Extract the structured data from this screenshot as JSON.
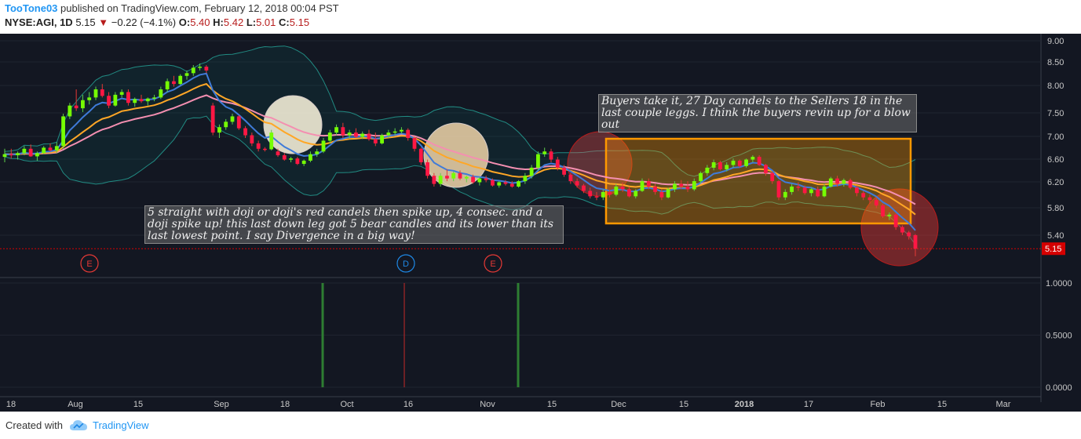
{
  "header": {
    "author": "TooTone03",
    "published": "published on TradingView.com, February 12, 2018 00:04 PST",
    "symbol": "NYSE:AGI, 1D",
    "last": "5.15",
    "change": "−0.22 (−4.1%)",
    "open_label": "O:",
    "open": "5.40",
    "high_label": "H:",
    "high": "5.42",
    "low_label": "L:",
    "low": "5.01",
    "close_label": "C:",
    "close": "5.15"
  },
  "price_axis": [
    "9.00",
    "8.50",
    "8.00",
    "7.50",
    "7.00",
    "6.60",
    "6.20",
    "5.80",
    "5.40"
  ],
  "price_badge": "5.15",
  "indicator_axis": [
    "1.0000",
    "0.5000",
    "0.0000"
  ],
  "time_axis": [
    "18",
    "Aug",
    "15",
    "Sep",
    "18",
    "Oct",
    "16",
    "Nov",
    "15",
    "Dec",
    "15",
    "2018",
    "17",
    "Feb",
    "15",
    "Mar"
  ],
  "event_markers": [
    "E",
    "D",
    "E"
  ],
  "annotations": {
    "left": "5 straight with doji or doji's red candels then spike up, 4 consec. and a doji spike up! this last down leg got 5 bear candles and its lower than its last lowest point. I say Divergence in a big way!",
    "right": "Buyers take it, 27 Day candels to the Sellers 18 in the last couple leggs. I think the buyers revin up for a blow out"
  },
  "footer": {
    "created_with": "Created with",
    "brand": "TradingView"
  },
  "colors": {
    "background": "#131722",
    "bull": "#4caf50",
    "bear": "#d50000",
    "accent": "#2196f3",
    "box": "#ff9800"
  },
  "chart_data": {
    "type": "candlestick",
    "symbol": "NYSE:AGI",
    "interval": "1D",
    "ylim": [
      5.0,
      9.1
    ],
    "indicator_ylim": [
      0,
      1
    ],
    "candles": [
      {
        "o": 6.85,
        "h": 7.0,
        "l": 6.75,
        "c": 6.9
      },
      {
        "o": 6.9,
        "h": 7.0,
        "l": 6.82,
        "c": 6.88
      },
      {
        "o": 6.88,
        "h": 6.95,
        "l": 6.8,
        "c": 6.92
      },
      {
        "o": 6.92,
        "h": 7.05,
        "l": 6.88,
        "c": 7.0
      },
      {
        "o": 7.0,
        "h": 7.08,
        "l": 6.85,
        "c": 6.86
      },
      {
        "o": 6.86,
        "h": 6.95,
        "l": 6.78,
        "c": 6.92
      },
      {
        "o": 6.92,
        "h": 7.05,
        "l": 6.9,
        "c": 7.02
      },
      {
        "o": 7.02,
        "h": 7.1,
        "l": 6.95,
        "c": 6.97
      },
      {
        "o": 6.97,
        "h": 7.12,
        "l": 6.92,
        "c": 7.05
      },
      {
        "o": 7.05,
        "h": 7.65,
        "l": 7.0,
        "c": 7.6
      },
      {
        "o": 7.6,
        "h": 7.85,
        "l": 7.55,
        "c": 7.8
      },
      {
        "o": 7.8,
        "h": 8.1,
        "l": 7.7,
        "c": 7.75
      },
      {
        "o": 7.75,
        "h": 8.0,
        "l": 7.68,
        "c": 7.9
      },
      {
        "o": 7.9,
        "h": 8.05,
        "l": 7.82,
        "c": 7.95
      },
      {
        "o": 7.95,
        "h": 8.15,
        "l": 7.9,
        "c": 8.1
      },
      {
        "o": 8.1,
        "h": 8.2,
        "l": 7.95,
        "c": 7.98
      },
      {
        "o": 7.98,
        "h": 8.05,
        "l": 7.75,
        "c": 7.8
      },
      {
        "o": 7.8,
        "h": 8.05,
        "l": 7.78,
        "c": 8.0
      },
      {
        "o": 8.0,
        "h": 8.1,
        "l": 7.95,
        "c": 8.05
      },
      {
        "o": 8.05,
        "h": 8.1,
        "l": 7.8,
        "c": 7.85
      },
      {
        "o": 7.85,
        "h": 7.95,
        "l": 7.78,
        "c": 7.92
      },
      {
        "o": 7.92,
        "h": 8.0,
        "l": 7.85,
        "c": 7.88
      },
      {
        "o": 7.88,
        "h": 7.95,
        "l": 7.8,
        "c": 7.93
      },
      {
        "o": 7.93,
        "h": 8.0,
        "l": 7.88,
        "c": 7.95
      },
      {
        "o": 7.95,
        "h": 8.15,
        "l": 7.92,
        "c": 8.1
      },
      {
        "o": 8.1,
        "h": 8.3,
        "l": 8.05,
        "c": 8.25
      },
      {
        "o": 8.25,
        "h": 8.35,
        "l": 8.15,
        "c": 8.2
      },
      {
        "o": 8.2,
        "h": 8.38,
        "l": 8.18,
        "c": 8.35
      },
      {
        "o": 8.35,
        "h": 8.45,
        "l": 8.28,
        "c": 8.4
      },
      {
        "o": 8.4,
        "h": 8.55,
        "l": 8.35,
        "c": 8.5
      },
      {
        "o": 8.5,
        "h": 8.58,
        "l": 8.45,
        "c": 8.52
      },
      {
        "o": 8.52,
        "h": 8.55,
        "l": 8.4,
        "c": 8.45
      },
      {
        "o": 7.8,
        "h": 7.85,
        "l": 7.25,
        "c": 7.3
      },
      {
        "o": 7.3,
        "h": 7.45,
        "l": 7.2,
        "c": 7.4
      },
      {
        "o": 7.4,
        "h": 7.55,
        "l": 7.35,
        "c": 7.5
      },
      {
        "o": 7.5,
        "h": 7.65,
        "l": 7.45,
        "c": 7.6
      },
      {
        "o": 7.6,
        "h": 7.62,
        "l": 7.35,
        "c": 7.38
      },
      {
        "o": 7.38,
        "h": 7.42,
        "l": 7.2,
        "c": 7.25
      },
      {
        "o": 7.25,
        "h": 7.3,
        "l": 7.05,
        "c": 7.1
      },
      {
        "o": 7.1,
        "h": 7.15,
        "l": 6.95,
        "c": 7.0
      },
      {
        "o": 7.0,
        "h": 7.03,
        "l": 6.95,
        "c": 6.99
      },
      {
        "o": 6.99,
        "h": 7.35,
        "l": 6.97,
        "c": 7.3
      },
      {
        "o": 6.95,
        "h": 7.0,
        "l": 6.85,
        "c": 6.88
      },
      {
        "o": 6.88,
        "h": 6.92,
        "l": 6.78,
        "c": 6.8
      },
      {
        "o": 6.8,
        "h": 6.85,
        "l": 6.75,
        "c": 6.82
      },
      {
        "o": 6.82,
        "h": 6.85,
        "l": 6.7,
        "c": 6.72
      },
      {
        "o": 6.72,
        "h": 6.8,
        "l": 6.68,
        "c": 6.78
      },
      {
        "o": 6.78,
        "h": 6.95,
        "l": 6.75,
        "c": 6.9
      },
      {
        "o": 6.9,
        "h": 7.0,
        "l": 6.85,
        "c": 6.95
      },
      {
        "o": 6.95,
        "h": 7.2,
        "l": 6.92,
        "c": 7.15
      },
      {
        "o": 7.15,
        "h": 7.35,
        "l": 7.1,
        "c": 7.3
      },
      {
        "o": 7.3,
        "h": 7.45,
        "l": 7.25,
        "c": 7.4
      },
      {
        "o": 7.4,
        "h": 7.48,
        "l": 7.2,
        "c": 7.25
      },
      {
        "o": 7.25,
        "h": 7.35,
        "l": 7.18,
        "c": 7.3
      },
      {
        "o": 7.3,
        "h": 7.38,
        "l": 7.2,
        "c": 7.22
      },
      {
        "o": 7.22,
        "h": 7.32,
        "l": 7.18,
        "c": 7.28
      },
      {
        "o": 7.28,
        "h": 7.35,
        "l": 7.15,
        "c": 7.18
      },
      {
        "o": 7.18,
        "h": 7.3,
        "l": 7.05,
        "c": 7.1
      },
      {
        "o": 7.1,
        "h": 7.28,
        "l": 7.08,
        "c": 7.25
      },
      {
        "o": 7.25,
        "h": 7.35,
        "l": 7.2,
        "c": 7.3
      },
      {
        "o": 7.3,
        "h": 7.38,
        "l": 7.25,
        "c": 7.32
      },
      {
        "o": 7.32,
        "h": 7.4,
        "l": 7.28,
        "c": 7.35
      },
      {
        "o": 7.35,
        "h": 7.38,
        "l": 7.15,
        "c": 7.2
      },
      {
        "o": 7.2,
        "h": 7.22,
        "l": 6.95,
        "c": 7.0
      },
      {
        "o": 7.0,
        "h": 7.02,
        "l": 6.7,
        "c": 6.75
      },
      {
        "o": 6.75,
        "h": 6.8,
        "l": 6.45,
        "c": 6.5
      },
      {
        "o": 6.5,
        "h": 6.55,
        "l": 6.3,
        "c": 6.35
      },
      {
        "o": 6.35,
        "h": 6.55,
        "l": 6.3,
        "c": 6.5
      },
      {
        "o": 6.5,
        "h": 6.62,
        "l": 6.4,
        "c": 6.45
      },
      {
        "o": 6.45,
        "h": 6.58,
        "l": 6.4,
        "c": 6.55
      },
      {
        "o": 6.55,
        "h": 6.6,
        "l": 6.42,
        "c": 6.45
      },
      {
        "o": 6.45,
        "h": 6.5,
        "l": 6.38,
        "c": 6.48
      },
      {
        "o": 6.48,
        "h": 6.52,
        "l": 6.35,
        "c": 6.38
      },
      {
        "o": 6.38,
        "h": 6.48,
        "l": 6.32,
        "c": 6.45
      },
      {
        "o": 6.45,
        "h": 6.5,
        "l": 6.38,
        "c": 6.42
      },
      {
        "o": 6.42,
        "h": 6.45,
        "l": 6.3,
        "c": 6.32
      },
      {
        "o": 6.32,
        "h": 6.4,
        "l": 6.28,
        "c": 6.38
      },
      {
        "o": 6.38,
        "h": 6.42,
        "l": 6.32,
        "c": 6.35
      },
      {
        "o": 6.35,
        "h": 6.4,
        "l": 6.28,
        "c": 6.3
      },
      {
        "o": 6.3,
        "h": 6.42,
        "l": 6.28,
        "c": 6.4
      },
      {
        "o": 6.4,
        "h": 6.55,
        "l": 6.35,
        "c": 6.5
      },
      {
        "o": 6.5,
        "h": 6.7,
        "l": 6.45,
        "c": 6.65
      },
      {
        "o": 6.65,
        "h": 6.95,
        "l": 6.6,
        "c": 6.9
      },
      {
        "o": 6.9,
        "h": 7.02,
        "l": 6.85,
        "c": 6.95
      },
      {
        "o": 6.95,
        "h": 7.0,
        "l": 6.75,
        "c": 6.8
      },
      {
        "o": 6.8,
        "h": 6.85,
        "l": 6.6,
        "c": 6.65
      },
      {
        "o": 6.65,
        "h": 6.7,
        "l": 6.48,
        "c": 6.52
      },
      {
        "o": 6.52,
        "h": 6.55,
        "l": 6.35,
        "c": 6.4
      },
      {
        "o": 6.4,
        "h": 6.45,
        "l": 6.28,
        "c": 6.32
      },
      {
        "o": 6.32,
        "h": 6.35,
        "l": 6.18,
        "c": 6.22
      },
      {
        "o": 6.22,
        "h": 6.28,
        "l": 6.08,
        "c": 6.12
      },
      {
        "o": 6.12,
        "h": 6.2,
        "l": 6.05,
        "c": 6.1
      },
      {
        "o": 6.1,
        "h": 6.25,
        "l": 6.05,
        "c": 6.2
      },
      {
        "o": 6.2,
        "h": 6.25,
        "l": 6.1,
        "c": 6.15
      },
      {
        "o": 6.15,
        "h": 6.35,
        "l": 6.12,
        "c": 6.3
      },
      {
        "o": 6.3,
        "h": 6.38,
        "l": 6.2,
        "c": 6.25
      },
      {
        "o": 6.25,
        "h": 6.3,
        "l": 6.1,
        "c": 6.12
      },
      {
        "o": 6.12,
        "h": 6.25,
        "l": 6.08,
        "c": 6.22
      },
      {
        "o": 6.22,
        "h": 6.45,
        "l": 6.2,
        "c": 6.4
      },
      {
        "o": 6.4,
        "h": 6.45,
        "l": 6.25,
        "c": 6.3
      },
      {
        "o": 6.3,
        "h": 6.35,
        "l": 6.15,
        "c": 6.2
      },
      {
        "o": 6.2,
        "h": 6.25,
        "l": 6.05,
        "c": 6.1
      },
      {
        "o": 6.1,
        "h": 6.28,
        "l": 6.08,
        "c": 6.25
      },
      {
        "o": 6.25,
        "h": 6.4,
        "l": 6.2,
        "c": 6.35
      },
      {
        "o": 6.35,
        "h": 6.42,
        "l": 6.25,
        "c": 6.3
      },
      {
        "o": 6.3,
        "h": 6.4,
        "l": 6.2,
        "c": 6.25
      },
      {
        "o": 6.25,
        "h": 6.45,
        "l": 6.22,
        "c": 6.4
      },
      {
        "o": 6.4,
        "h": 6.58,
        "l": 6.35,
        "c": 6.55
      },
      {
        "o": 6.55,
        "h": 6.7,
        "l": 6.5,
        "c": 6.65
      },
      {
        "o": 6.65,
        "h": 6.8,
        "l": 6.6,
        "c": 6.75
      },
      {
        "o": 6.75,
        "h": 6.78,
        "l": 6.6,
        "c": 6.62
      },
      {
        "o": 6.62,
        "h": 6.75,
        "l": 6.58,
        "c": 6.7
      },
      {
        "o": 6.7,
        "h": 6.82,
        "l": 6.65,
        "c": 6.78
      },
      {
        "o": 6.78,
        "h": 6.8,
        "l": 6.65,
        "c": 6.68
      },
      {
        "o": 6.68,
        "h": 6.82,
        "l": 6.65,
        "c": 6.8
      },
      {
        "o": 6.8,
        "h": 6.88,
        "l": 6.75,
        "c": 6.85
      },
      {
        "o": 6.85,
        "h": 6.88,
        "l": 6.68,
        "c": 6.7
      },
      {
        "o": 6.7,
        "h": 6.72,
        "l": 6.5,
        "c": 6.55
      },
      {
        "o": 6.55,
        "h": 6.58,
        "l": 6.35,
        "c": 6.4
      },
      {
        "o": 6.4,
        "h": 6.42,
        "l": 6.05,
        "c": 6.1
      },
      {
        "o": 6.1,
        "h": 6.25,
        "l": 6.05,
        "c": 6.2
      },
      {
        "o": 6.2,
        "h": 6.35,
        "l": 6.15,
        "c": 6.3
      },
      {
        "o": 6.3,
        "h": 6.38,
        "l": 6.22,
        "c": 6.28
      },
      {
        "o": 6.28,
        "h": 6.32,
        "l": 6.15,
        "c": 6.18
      },
      {
        "o": 6.18,
        "h": 6.28,
        "l": 6.12,
        "c": 6.25
      },
      {
        "o": 6.25,
        "h": 6.3,
        "l": 6.1,
        "c": 6.12
      },
      {
        "o": 6.12,
        "h": 6.35,
        "l": 6.1,
        "c": 6.3
      },
      {
        "o": 6.3,
        "h": 6.48,
        "l": 6.28,
        "c": 6.45
      },
      {
        "o": 6.45,
        "h": 6.5,
        "l": 6.3,
        "c": 6.35
      },
      {
        "o": 6.35,
        "h": 6.45,
        "l": 6.3,
        "c": 6.42
      },
      {
        "o": 6.42,
        "h": 6.45,
        "l": 6.25,
        "c": 6.28
      },
      {
        "o": 6.28,
        "h": 6.32,
        "l": 6.12,
        "c": 6.18
      },
      {
        "o": 6.18,
        "h": 6.22,
        "l": 6.05,
        "c": 6.1
      },
      {
        "o": 6.1,
        "h": 6.15,
        "l": 5.98,
        "c": 6.05
      },
      {
        "o": 6.05,
        "h": 6.1,
        "l": 5.9,
        "c": 5.95
      },
      {
        "o": 5.95,
        "h": 5.98,
        "l": 5.72,
        "c": 5.75
      },
      {
        "o": 5.75,
        "h": 5.82,
        "l": 5.68,
        "c": 5.78
      },
      {
        "o": 5.78,
        "h": 5.8,
        "l": 5.5,
        "c": 5.55
      },
      {
        "o": 5.55,
        "h": 5.58,
        "l": 5.4,
        "c": 5.45
      },
      {
        "o": 5.45,
        "h": 5.48,
        "l": 5.32,
        "c": 5.38
      },
      {
        "o": 5.4,
        "h": 5.42,
        "l": 5.01,
        "c": 5.15
      }
    ],
    "indicator_spikes": [
      {
        "bar": 49,
        "value": 1.0,
        "color": "green"
      },
      {
        "bar": 62,
        "value": 1.0,
        "color": "red"
      },
      {
        "bar": 80,
        "value": 1.0,
        "color": "green"
      }
    ]
  }
}
